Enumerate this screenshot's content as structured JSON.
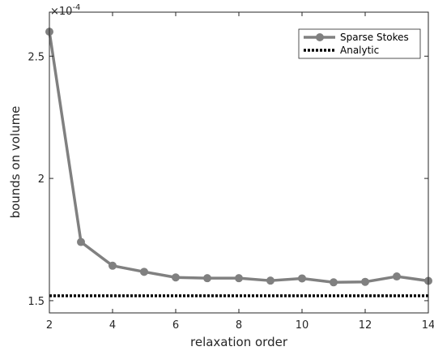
{
  "chart_data": {
    "type": "line",
    "xlabel": "relaxation order",
    "ylabel": "bounds on volume",
    "y_exponent_label": "×10",
    "y_exponent_power": "-4",
    "xlim": [
      2,
      14
    ],
    "ylim": [
      1.45,
      2.68
    ],
    "x_ticks": [
      2,
      4,
      6,
      8,
      10,
      12,
      14
    ],
    "x_tick_labels": [
      "2",
      "4",
      "6",
      "8",
      "10",
      "12",
      "14"
    ],
    "y_ticks": [
      1.5,
      2.0,
      2.5
    ],
    "y_tick_labels": [
      "1.5",
      "2",
      "2.5"
    ],
    "grid": false,
    "legend_position": "top-right",
    "series": [
      {
        "name": "Sparse Stokes",
        "style": "solid-with-circle-markers",
        "color": "#808080",
        "x": [
          2,
          3,
          4,
          5,
          6,
          7,
          8,
          9,
          10,
          11,
          12,
          13,
          14
        ],
        "values": [
          2.6,
          1.74,
          1.643,
          1.618,
          1.595,
          1.592,
          1.592,
          1.582,
          1.591,
          1.575,
          1.577,
          1.599,
          1.581
        ]
      },
      {
        "name": "Analytic",
        "style": "dotted",
        "color": "#000000",
        "x": [
          2,
          14
        ],
        "values": [
          1.52,
          1.52
        ]
      }
    ]
  }
}
